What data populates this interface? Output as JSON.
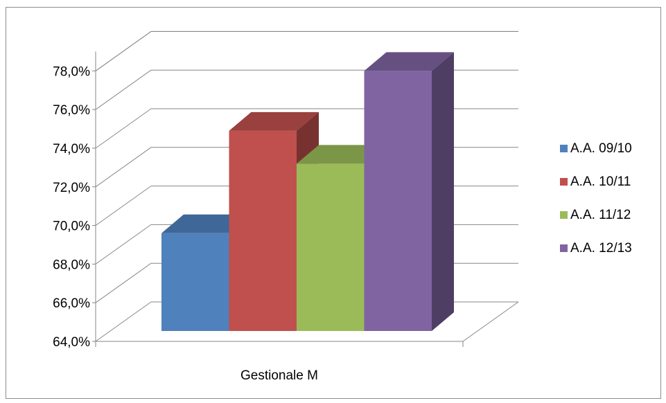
{
  "chart_data": {
    "type": "bar",
    "title": "",
    "xlabel": "",
    "ylabel": "",
    "categories": [
      "Gestionale M"
    ],
    "series": [
      {
        "name": "A.A. 09/10",
        "values": [
          69.6
        ],
        "color": "#4f81bd"
      },
      {
        "name": "A.A. 10/11",
        "values": [
          74.9
        ],
        "color": "#c0504d"
      },
      {
        "name": "A.A. 11/12",
        "values": [
          73.2
        ],
        "color": "#9bbb59"
      },
      {
        "name": "A.A. 12/13",
        "values": [
          78.0
        ],
        "color": "#8064a2"
      }
    ],
    "ylim": [
      64,
      78
    ],
    "yticks": [
      "64,0%",
      "66,0%",
      "68,0%",
      "70,0%",
      "72,0%",
      "74,0%",
      "76,0%",
      "78,0%"
    ],
    "grid": true,
    "legend_position": "right",
    "style": "3d-column"
  }
}
